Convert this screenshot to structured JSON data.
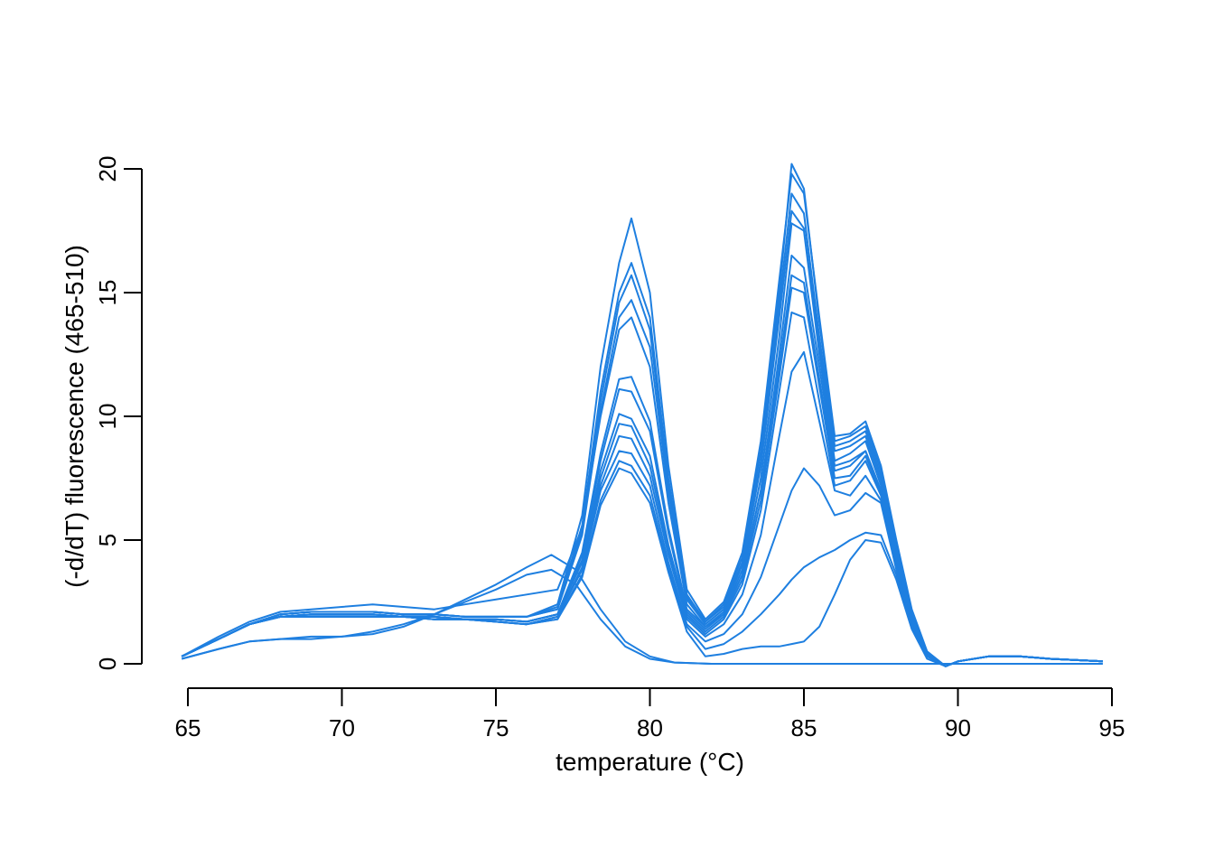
{
  "chart_data": {
    "type": "line",
    "title": "",
    "xlabel": "temperature (°C)",
    "ylabel": "(-d/dT) fluorescence (465-510)",
    "xlim": [
      64.8,
      94.7
    ],
    "ylim": [
      0,
      20
    ],
    "xticks": [
      65,
      70,
      75,
      80,
      85,
      90,
      95
    ],
    "yticks": [
      0,
      5,
      10,
      15,
      20
    ],
    "grid": false,
    "legend": "none",
    "color": "#1e7fe0",
    "series": [
      {
        "x": [
          64.8,
          66,
          67,
          68,
          69,
          70,
          71,
          72,
          73,
          74,
          75,
          76,
          77,
          77.8,
          78.4,
          79,
          79.4,
          80,
          80.6,
          81.2,
          81.8,
          82.4,
          83,
          83.6,
          84.2,
          84.6,
          85,
          85.5,
          86,
          86.5,
          87,
          87.5,
          88,
          88.5,
          89,
          89.6,
          90,
          91,
          92,
          93,
          94.7
        ],
        "y": [
          0.3,
          1.0,
          1.6,
          2.0,
          2.1,
          2.1,
          2.1,
          2.0,
          2.0,
          1.9,
          1.9,
          1.9,
          2.4,
          6.0,
          12.0,
          16.2,
          18.0,
          15.0,
          8.0,
          3.0,
          1.8,
          2.5,
          4.5,
          9.0,
          15.5,
          19.8,
          19.0,
          14.0,
          9.2,
          9.3,
          9.8,
          8.0,
          5.0,
          2.2,
          0.5,
          -0.1,
          0.1,
          0.3,
          0.3,
          0.2,
          0.1
        ]
      },
      {
        "x": [
          64.8,
          66,
          67,
          68,
          69,
          70,
          71,
          72,
          73,
          74,
          75,
          76,
          77,
          77.8,
          78.4,
          79,
          79.4,
          80,
          80.6,
          81.2,
          81.8,
          82.4,
          83,
          83.6,
          84.2,
          84.6,
          85,
          85.5,
          86,
          86.5,
          87,
          87.5,
          88,
          88.5,
          89,
          89.6,
          90,
          91,
          92,
          93,
          94.7
        ],
        "y": [
          0.3,
          1.0,
          1.6,
          2.0,
          2.1,
          2.1,
          2.1,
          2.0,
          2.0,
          1.9,
          1.9,
          1.9,
          2.3,
          5.6,
          11.0,
          15.0,
          16.2,
          14.0,
          7.5,
          2.8,
          1.7,
          2.4,
          4.3,
          8.6,
          15.0,
          20.2,
          19.2,
          13.8,
          9.0,
          9.2,
          9.6,
          7.8,
          4.8,
          2.0,
          0.4,
          -0.1,
          0.1,
          0.3,
          0.3,
          0.2,
          0.1
        ]
      },
      {
        "x": [
          64.8,
          66,
          67,
          68,
          69,
          70,
          71,
          72,
          73,
          74,
          75,
          76,
          77,
          77.8,
          78.4,
          79,
          79.4,
          80,
          80.6,
          81.2,
          81.8,
          82.4,
          83,
          83.6,
          84.2,
          84.6,
          85,
          85.5,
          86,
          86.5,
          87,
          87.5,
          88,
          88.5,
          89,
          89.6,
          90,
          91,
          92,
          93,
          94.7
        ],
        "y": [
          0.3,
          1.0,
          1.6,
          2.0,
          2.1,
          2.1,
          2.1,
          2.0,
          2.0,
          1.9,
          1.9,
          1.9,
          2.2,
          5.4,
          10.6,
          14.6,
          15.7,
          13.5,
          7.2,
          2.7,
          1.7,
          2.3,
          4.1,
          8.2,
          14.5,
          19.0,
          18.2,
          13.2,
          8.8,
          9.0,
          9.4,
          7.6,
          4.7,
          2.0,
          0.4,
          -0.1,
          0.1,
          0.3,
          0.3,
          0.2,
          0.1
        ]
      },
      {
        "x": [
          64.8,
          66,
          67,
          68,
          69,
          70,
          71,
          72,
          73,
          74,
          75,
          76,
          77,
          77.8,
          78.4,
          79,
          79.4,
          80,
          80.6,
          81.2,
          81.8,
          82.4,
          83,
          83.6,
          84.2,
          84.6,
          85,
          85.5,
          86,
          86.5,
          87,
          87.5,
          88,
          88.5,
          89,
          89.6,
          90,
          91,
          92,
          93,
          94.7
        ],
        "y": [
          0.3,
          1.0,
          1.6,
          2.0,
          2.1,
          2.1,
          2.1,
          2.0,
          2.0,
          1.9,
          1.9,
          1.9,
          2.2,
          5.2,
          10.2,
          14.0,
          14.7,
          12.8,
          6.9,
          2.6,
          1.6,
          2.2,
          4.0,
          8.0,
          14.0,
          18.3,
          17.6,
          12.8,
          8.6,
          8.8,
          9.2,
          7.4,
          4.6,
          1.9,
          0.4,
          -0.1,
          0.1,
          0.3,
          0.3,
          0.2,
          0.1
        ]
      },
      {
        "x": [
          64.8,
          66,
          67,
          68,
          69,
          70,
          71,
          72,
          73,
          74,
          75,
          76,
          77,
          77.8,
          78.4,
          79,
          79.4,
          80,
          80.6,
          81.2,
          81.8,
          82.4,
          83,
          83.6,
          84.2,
          84.6,
          85,
          85.5,
          86,
          86.5,
          87,
          87.5,
          88,
          88.5,
          89,
          89.6,
          90,
          91,
          92,
          93,
          94.7
        ],
        "y": [
          0.3,
          1.0,
          1.6,
          1.9,
          2.0,
          2.0,
          2.0,
          1.9,
          1.9,
          1.8,
          1.8,
          1.7,
          2.0,
          4.5,
          8.5,
          11.5,
          11.6,
          9.8,
          5.5,
          2.2,
          1.5,
          2.1,
          3.8,
          7.5,
          13.2,
          17.8,
          17.5,
          12.5,
          8.2,
          8.5,
          9.0,
          7.2,
          4.4,
          1.8,
          0.3,
          -0.1,
          0.1,
          0.3,
          0.3,
          0.2,
          0.1
        ]
      },
      {
        "x": [
          64.8,
          66,
          67,
          68,
          69,
          70,
          71,
          72,
          73,
          74,
          75,
          76,
          77,
          77.8,
          78.4,
          79,
          79.4,
          80,
          80.6,
          81.2,
          81.8,
          82.4,
          83,
          83.6,
          84.2,
          84.6,
          85,
          85.5,
          86,
          86.5,
          87,
          87.5,
          88,
          88.5,
          89,
          89.6,
          90,
          91,
          92,
          93,
          94.7
        ],
        "y": [
          0.3,
          1.0,
          1.6,
          1.9,
          2.0,
          2.0,
          2.0,
          1.9,
          1.9,
          1.8,
          1.8,
          1.7,
          2.0,
          4.4,
          8.2,
          11.1,
          11.0,
          9.4,
          5.3,
          2.1,
          1.4,
          2.0,
          3.6,
          7.0,
          12.0,
          15.7,
          15.4,
          11.5,
          7.8,
          8.0,
          8.6,
          7.0,
          4.2,
          1.7,
          0.3,
          -0.1,
          0.1,
          0.3,
          0.3,
          0.2,
          0.1
        ]
      },
      {
        "x": [
          64.8,
          66,
          67,
          68,
          69,
          70,
          71,
          72,
          73,
          74,
          75,
          76,
          77,
          77.8,
          78.4,
          79,
          79.4,
          80,
          80.6,
          81.2,
          81.8,
          82.4,
          83,
          83.6,
          84.2,
          84.6,
          85,
          85.5,
          86,
          86.5,
          87,
          87.5,
          88,
          88.5,
          89,
          89.6,
          90,
          91,
          92,
          93,
          94.7
        ],
        "y": [
          0.3,
          1.0,
          1.6,
          1.9,
          2.0,
          2.0,
          2.0,
          1.9,
          1.9,
          1.8,
          1.8,
          1.7,
          2.0,
          4.2,
          7.8,
          10.1,
          9.9,
          8.4,
          4.8,
          2.0,
          1.3,
          1.9,
          3.4,
          6.6,
          11.6,
          15.2,
          15.0,
          11.2,
          7.5,
          7.6,
          8.4,
          6.9,
          4.1,
          1.7,
          0.3,
          -0.1,
          0.1,
          0.3,
          0.3,
          0.2,
          0.1
        ]
      },
      {
        "x": [
          64.8,
          66,
          67,
          68,
          69,
          70,
          71,
          72,
          73,
          74,
          75,
          76,
          77,
          77.8,
          78.4,
          79,
          79.4,
          80,
          80.6,
          81.2,
          81.8,
          82.4,
          83,
          83.6,
          84.2,
          84.6,
          85,
          85.5,
          86,
          86.5,
          87,
          87.5,
          88,
          88.5,
          89,
          89.6,
          90,
          91,
          92,
          93,
          94.7
        ],
        "y": [
          0.3,
          1.0,
          1.6,
          1.9,
          2.0,
          2.0,
          2.0,
          1.9,
          1.9,
          1.8,
          1.8,
          1.7,
          2.0,
          4.1,
          7.5,
          9.7,
          9.6,
          8.0,
          4.6,
          1.9,
          1.2,
          1.8,
          3.2,
          6.2,
          11.0,
          14.2,
          14.0,
          10.6,
          7.2,
          7.4,
          8.2,
          6.8,
          4.0,
          1.6,
          0.3,
          -0.1,
          0.1,
          0.3,
          0.3,
          0.2,
          0.1
        ]
      },
      {
        "x": [
          64.8,
          66,
          67,
          68,
          69,
          70,
          71,
          72,
          73,
          74,
          75,
          76,
          77,
          77.8,
          78.4,
          79,
          79.4,
          80,
          80.6,
          81.2,
          81.8,
          82.4,
          83,
          83.6,
          84.2,
          84.6,
          85,
          85.5,
          86,
          86.5,
          87,
          87.5,
          88,
          88.5,
          89,
          89.6,
          90,
          91,
          92,
          93,
          94.7
        ],
        "y": [
          0.3,
          1.0,
          1.6,
          1.9,
          1.9,
          1.9,
          1.9,
          1.9,
          1.8,
          1.8,
          1.7,
          1.6,
          1.9,
          3.9,
          7.2,
          9.2,
          9.1,
          7.6,
          4.4,
          1.8,
          1.1,
          1.6,
          2.8,
          5.2,
          9.2,
          11.8,
          12.6,
          9.8,
          7.0,
          6.8,
          7.6,
          6.6,
          3.9,
          1.6,
          0.3,
          -0.1,
          0.1,
          0.3,
          0.3,
          0.2,
          0.1
        ]
      },
      {
        "x": [
          64.8,
          66,
          67,
          68,
          69,
          70,
          71,
          72,
          73,
          74,
          75,
          76,
          77,
          77.8,
          78.4,
          79,
          79.4,
          80,
          80.6,
          81.2,
          81.8,
          82.4,
          83,
          83.6,
          84.2,
          84.6,
          85,
          85.5,
          86,
          86.5,
          87,
          87.5,
          88,
          88.5,
          89,
          89.6,
          90,
          91,
          92,
          93,
          94.7
        ],
        "y": [
          0.3,
          1.0,
          1.6,
          1.9,
          1.9,
          1.9,
          1.9,
          1.9,
          1.8,
          1.8,
          1.7,
          1.6,
          1.9,
          3.8,
          7.0,
          8.6,
          8.5,
          7.2,
          4.1,
          1.6,
          0.9,
          1.2,
          2.0,
          3.5,
          5.6,
          7.0,
          7.9,
          7.2,
          6.0,
          6.2,
          6.9,
          6.5,
          3.8,
          1.6,
          0.3,
          -0.1,
          0.1,
          0.3,
          0.3,
          0.2,
          0.1
        ]
      },
      {
        "x": [
          64.8,
          66,
          67,
          68,
          69,
          70,
          71,
          72,
          73,
          74,
          75,
          76,
          77,
          77.8,
          78.4,
          79,
          79.4,
          80,
          80.6,
          81.2,
          81.8,
          82.4,
          83,
          83.6,
          84.2,
          84.6,
          85,
          85.5,
          86,
          86.5,
          87,
          87.5,
          88,
          88.5,
          89,
          89.6,
          90,
          91,
          92,
          93,
          94.7
        ],
        "y": [
          0.3,
          1.0,
          1.6,
          1.9,
          1.9,
          1.9,
          1.9,
          1.9,
          1.8,
          1.8,
          1.7,
          1.6,
          1.8,
          3.6,
          6.6,
          8.2,
          8.0,
          6.8,
          3.9,
          1.5,
          0.6,
          0.8,
          1.3,
          2.0,
          2.8,
          3.4,
          3.9,
          4.3,
          4.6,
          5.0,
          5.3,
          5.2,
          3.6,
          1.5,
          0.3,
          -0.1,
          0.1,
          0.3,
          0.3,
          0.2,
          0.1
        ]
      },
      {
        "x": [
          64.8,
          66,
          67,
          68,
          69,
          70,
          71,
          72,
          73,
          74,
          75,
          76,
          77,
          77.8,
          78.4,
          79,
          79.4,
          80,
          80.6,
          81.2,
          81.8,
          82.4,
          83,
          83.6,
          84.2,
          84.6,
          85,
          85.5,
          86,
          86.5,
          87,
          87.5,
          88,
          88.5,
          89,
          89.6,
          90,
          91,
          92,
          93,
          94.7
        ],
        "y": [
          0.3,
          1.0,
          1.6,
          1.9,
          1.9,
          1.9,
          1.9,
          1.9,
          1.8,
          1.8,
          1.7,
          1.6,
          1.8,
          3.5,
          6.4,
          7.9,
          7.7,
          6.5,
          3.7,
          1.3,
          0.3,
          0.4,
          0.6,
          0.7,
          0.7,
          0.8,
          0.9,
          1.5,
          2.8,
          4.2,
          5.0,
          4.9,
          3.4,
          1.4,
          0.2,
          -0.1,
          0.1,
          0.3,
          0.3,
          0.2,
          0.1
        ]
      },
      {
        "x": [
          64.8,
          66,
          67,
          68,
          69,
          70,
          71,
          72,
          73,
          74,
          75,
          76,
          76.8,
          77.6,
          78.4,
          79.2,
          80,
          80.8,
          82,
          84,
          86,
          88,
          90,
          92,
          94.7
        ],
        "y": [
          0.2,
          0.6,
          0.9,
          1.0,
          1.1,
          1.1,
          1.3,
          1.6,
          2.0,
          2.5,
          3.0,
          3.6,
          3.8,
          3.2,
          1.8,
          0.7,
          0.2,
          0.05,
          0.0,
          0.0,
          0.0,
          0.0,
          0.0,
          0.0,
          0.0
        ]
      },
      {
        "x": [
          64.8,
          66,
          67,
          68,
          69,
          70,
          71,
          72,
          73,
          74,
          75,
          76,
          76.8,
          77.6,
          78.4,
          79.2,
          80,
          80.8,
          82,
          84,
          86,
          88,
          90,
          92,
          94.7
        ],
        "y": [
          0.2,
          0.6,
          0.9,
          1.0,
          1.0,
          1.1,
          1.2,
          1.5,
          2.0,
          2.6,
          3.2,
          3.9,
          4.4,
          3.8,
          2.2,
          0.9,
          0.3,
          0.05,
          0.0,
          0.0,
          0.0,
          0.0,
          0.0,
          0.0,
          0.0
        ]
      },
      {
        "x": [
          64.8,
          66,
          67,
          68,
          69,
          70,
          71,
          72,
          73,
          74,
          75,
          76,
          77,
          77.8,
          78.4,
          79,
          79.4,
          80,
          80.6,
          81.2,
          81.8,
          82.4,
          83,
          83.6,
          84.2,
          84.6,
          85,
          85.5,
          86,
          86.5,
          87,
          87.5,
          88,
          88.5,
          89,
          89.6,
          90,
          91,
          92,
          93,
          94.7
        ],
        "y": [
          0.3,
          1.1,
          1.7,
          2.1,
          2.2,
          2.3,
          2.4,
          2.3,
          2.2,
          2.4,
          2.6,
          2.8,
          3.0,
          5.5,
          10.0,
          13.5,
          14.0,
          12.0,
          6.5,
          2.4,
          1.5,
          2.0,
          3.6,
          7.0,
          12.5,
          16.5,
          16.0,
          12.0,
          8.0,
          8.2,
          8.6,
          7.0,
          4.3,
          1.8,
          0.3,
          -0.1,
          0.1,
          0.3,
          0.3,
          0.2,
          0.1
        ]
      }
    ]
  }
}
